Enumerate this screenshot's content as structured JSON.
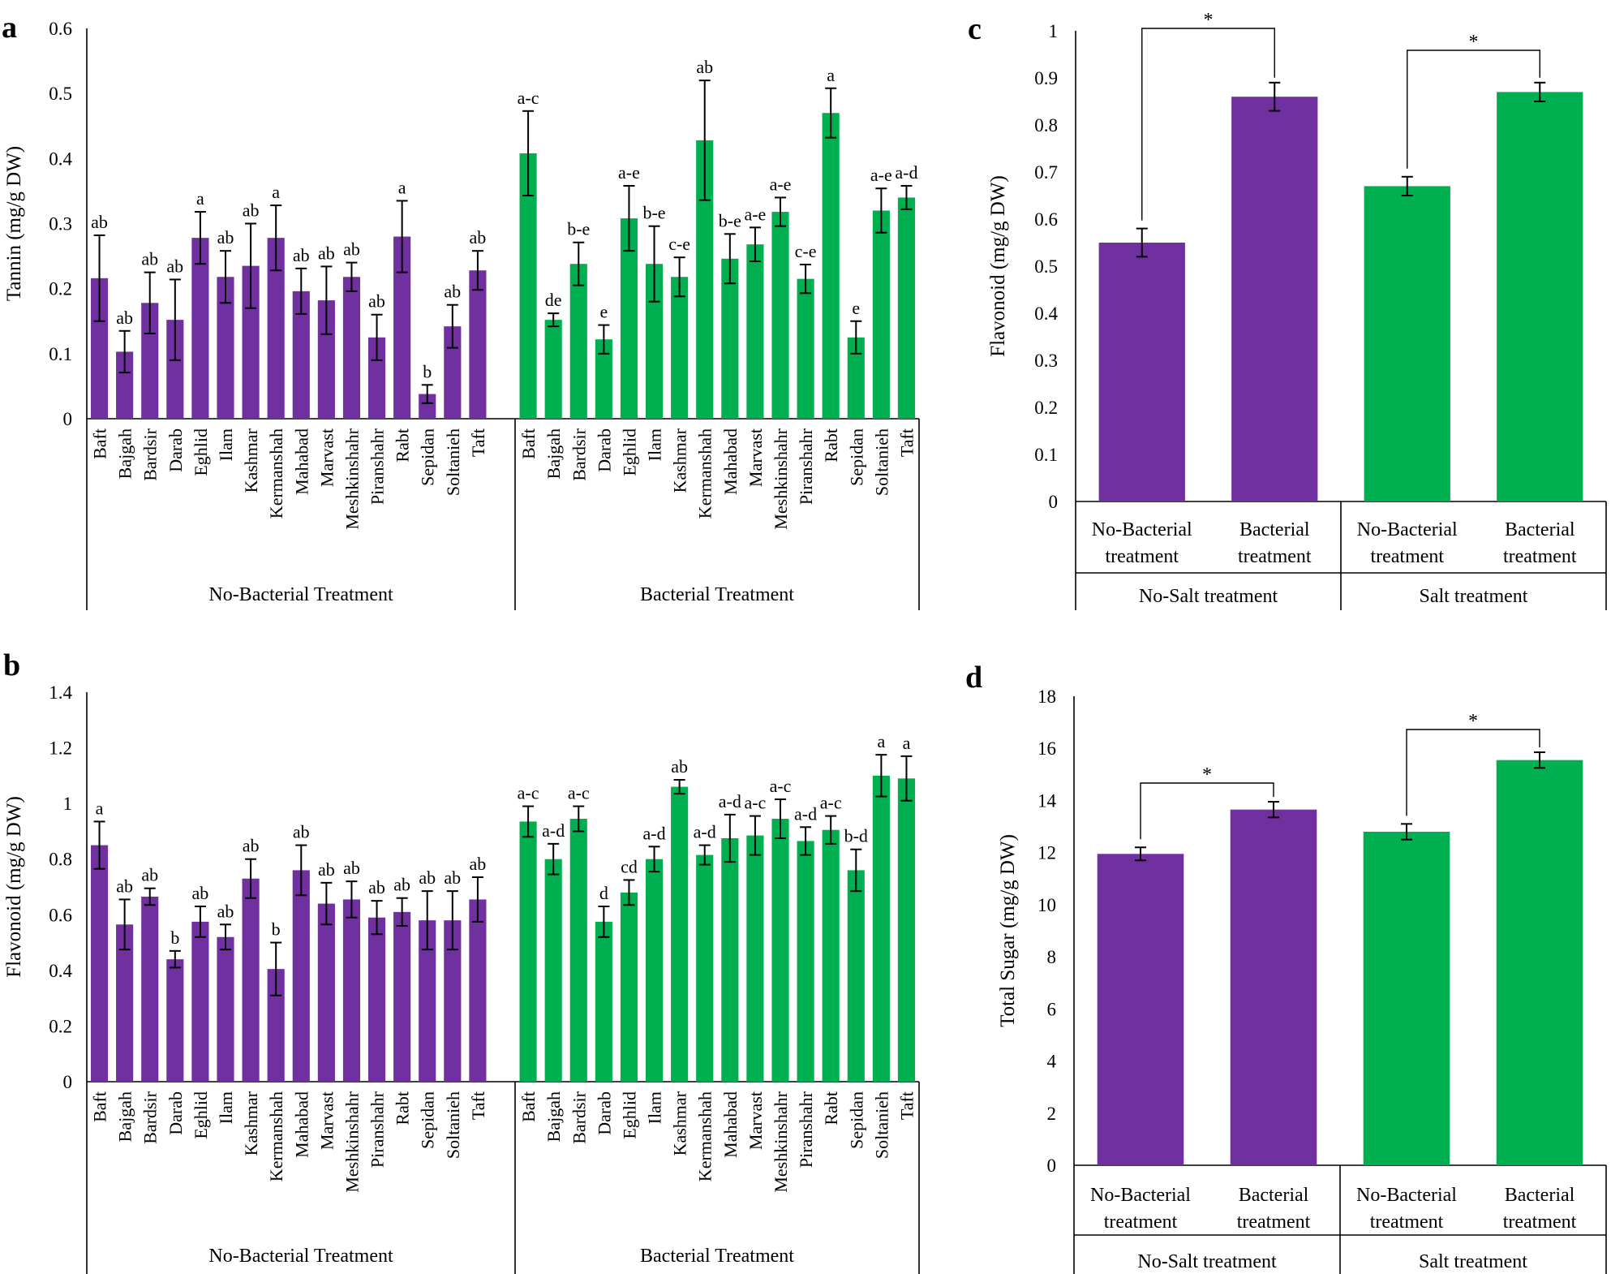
{
  "colors": {
    "no_bacterial": "#7030A0",
    "bacterial": "#00B050"
  },
  "chart_data": [
    {
      "panel": "a",
      "type": "bar",
      "ylabel": "Tannin (mg/g DW)",
      "ylim": [
        0,
        0.6
      ],
      "yticks": [
        "0",
        "0.1",
        "0.2",
        "0.3",
        "0.4",
        "0.5",
        "0.6"
      ],
      "categories": [
        "Baft",
        "Bajgah",
        "Bardsir",
        "Darab",
        "Eghlid",
        "Ilam",
        "Kashmar",
        "Kermanshah",
        "Mahabad",
        "Marvast",
        "Meshkinshahr",
        "Piranshahr",
        "Rabt",
        "Sepidan",
        "Soltanieh",
        "Taft"
      ],
      "series": [
        {
          "name": "No-Bacterial Treatment",
          "color": "#7030A0",
          "values": [
            0.216,
            0.103,
            0.178,
            0.152,
            0.278,
            0.218,
            0.235,
            0.278,
            0.196,
            0.182,
            0.218,
            0.125,
            0.28,
            0.038,
            0.142,
            0.228
          ],
          "errors": [
            0.066,
            0.032,
            0.047,
            0.062,
            0.04,
            0.04,
            0.065,
            0.05,
            0.035,
            0.052,
            0.022,
            0.035,
            0.055,
            0.014,
            0.033,
            0.03
          ],
          "letters": [
            "ab",
            "ab",
            "ab",
            "ab",
            "a",
            "ab",
            "ab",
            "a",
            "ab",
            "ab",
            "ab",
            "ab",
            "a",
            "b",
            "ab",
            "ab"
          ]
        },
        {
          "name": "Bacterial Treatment",
          "color": "#00B050",
          "values": [
            0.408,
            0.152,
            0.238,
            0.122,
            0.308,
            0.238,
            0.218,
            0.428,
            0.246,
            0.268,
            0.318,
            0.215,
            0.47,
            0.125,
            0.32,
            0.34
          ],
          "errors": [
            0.065,
            0.01,
            0.033,
            0.022,
            0.05,
            0.058,
            0.03,
            0.092,
            0.038,
            0.026,
            0.022,
            0.022,
            0.038,
            0.025,
            0.034,
            0.018
          ],
          "letters": [
            "a-c",
            "de",
            "b-e",
            "e",
            "a-e",
            "b-e",
            "c-e",
            "ab",
            "b-e",
            "a-e",
            "a-e",
            "c-e",
            "a",
            "e",
            "a-e",
            "a-d"
          ]
        }
      ]
    },
    {
      "panel": "b",
      "type": "bar",
      "ylabel": "Flavonoid (mg/g DW)",
      "ylim": [
        0,
        1.4
      ],
      "yticks": [
        "0",
        "0.2",
        "0.4",
        "0.6",
        "0.8",
        "1",
        "1.2",
        "1.4"
      ],
      "categories": [
        "Baft",
        "Bajgah",
        "Bardsir",
        "Darab",
        "Eghlid",
        "Ilam",
        "Kashmar",
        "Kermanshah",
        "Mahabad",
        "Marvast",
        "Meshkinshahr",
        "Piranshahr",
        "Rabt",
        "Sepidan",
        "Soltanieh",
        "Taft"
      ],
      "series": [
        {
          "name": "No-Bacterial Treatment",
          "color": "#7030A0",
          "values": [
            0.85,
            0.565,
            0.665,
            0.44,
            0.575,
            0.52,
            0.73,
            0.405,
            0.76,
            0.64,
            0.655,
            0.59,
            0.61,
            0.58,
            0.58,
            0.655
          ],
          "errors": [
            0.085,
            0.09,
            0.03,
            0.03,
            0.055,
            0.045,
            0.07,
            0.095,
            0.09,
            0.075,
            0.065,
            0.06,
            0.05,
            0.105,
            0.105,
            0.08
          ],
          "letters": [
            "a",
            "ab",
            "ab",
            "b",
            "ab",
            "ab",
            "ab",
            "b",
            "ab",
            "ab",
            "ab",
            "ab",
            "ab",
            "ab",
            "ab",
            "ab"
          ]
        },
        {
          "name": "Bacterial Treatment",
          "color": "#00B050",
          "values": [
            0.935,
            0.8,
            0.945,
            0.575,
            0.68,
            0.8,
            1.06,
            0.815,
            0.875,
            0.885,
            0.945,
            0.865,
            0.905,
            0.76,
            1.1,
            1.09
          ],
          "errors": [
            0.055,
            0.055,
            0.045,
            0.055,
            0.045,
            0.045,
            0.025,
            0.035,
            0.085,
            0.07,
            0.07,
            0.05,
            0.05,
            0.075,
            0.075,
            0.08
          ],
          "letters": [
            "a-c",
            "a-d",
            "a-c",
            "d",
            "cd",
            "a-d",
            "ab",
            "a-d",
            "a-d",
            "a-c",
            "a-c",
            "a-d",
            "a-c",
            "b-d",
            "a",
            "a"
          ]
        }
      ]
    },
    {
      "panel": "c",
      "type": "bar",
      "ylabel": "Flavonoid (mg/g DW)",
      "ylim": [
        0,
        1
      ],
      "yticks": [
        "0",
        "0.1",
        "0.2",
        "0.3",
        "0.4",
        "0.5",
        "0.6",
        "0.7",
        "0.8",
        "0.9",
        "1"
      ],
      "categories": [
        "No-Bacterial treatment",
        "Bacterial treatment",
        "No-Bacterial treatment",
        "Bacterial treatment"
      ],
      "groups": [
        "No-Salt treatment",
        "Salt treatment"
      ],
      "values": [
        0.55,
        0.86,
        0.67,
        0.87
      ],
      "errors": [
        0.03,
        0.03,
        0.02,
        0.02
      ],
      "colors": [
        "#7030A0",
        "#7030A0",
        "#00B050",
        "#00B050"
      ],
      "significance": [
        "*",
        "*"
      ]
    },
    {
      "panel": "d",
      "type": "bar",
      "ylabel": "Total Sugar (mg/g DW)",
      "ylim": [
        0,
        18
      ],
      "yticks": [
        "0",
        "2",
        "4",
        "6",
        "8",
        "10",
        "12",
        "14",
        "16",
        "18"
      ],
      "categories": [
        "No-Bacterial treatment",
        "Bacterial treatment",
        "No-Bacterial treatment",
        "Bacterial treatment"
      ],
      "groups": [
        "No-Salt treatment",
        "Salt treatment"
      ],
      "values": [
        11.95,
        13.65,
        12.8,
        15.55
      ],
      "errors": [
        0.25,
        0.3,
        0.3,
        0.3
      ],
      "colors": [
        "#7030A0",
        "#7030A0",
        "#00B050",
        "#00B050"
      ],
      "significance": [
        "*",
        "*"
      ]
    }
  ]
}
